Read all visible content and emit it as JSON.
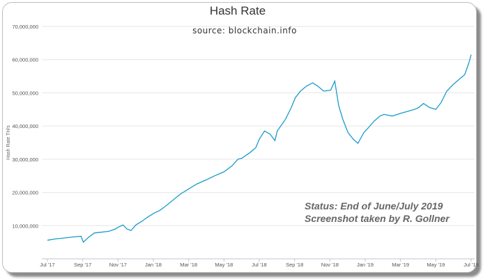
{
  "annotation": {
    "line1": "Status: End of June/July 2019",
    "line2": "Screenshot taken by R. Gollner"
  },
  "chart_data": {
    "type": "line",
    "title": "Hash Rate",
    "subtitle": "source: blockchain.info",
    "xlabel": "",
    "ylabel": "Hash Rate TH/s",
    "ylim": [
      0,
      70000000
    ],
    "y_ticks": [
      "10,000,000",
      "20,000,000",
      "30,000,000",
      "40,000,000",
      "50,000,000",
      "60,000,000",
      "70,000,000"
    ],
    "x_ticks": [
      "Jul '17",
      "Sep '17",
      "Nov '17",
      "Jan '18",
      "Mar '18",
      "May '18",
      "Jul '18",
      "Sep '18",
      "Nov '18",
      "Jan '19",
      "Mar '19",
      "May '19",
      "Jul '19"
    ],
    "grid": true,
    "line_color": "#1a9bc9",
    "series": [
      {
        "x": [
          "2017-07-01",
          "2017-07-15",
          "2017-08-01",
          "2017-08-15",
          "2017-08-28",
          "2017-09-01",
          "2017-09-10",
          "2017-09-20",
          "2017-10-01",
          "2017-10-15",
          "2017-10-25",
          "2017-11-01",
          "2017-11-08",
          "2017-11-15",
          "2017-11-22",
          "2017-12-01",
          "2017-12-10",
          "2017-12-20",
          "2018-01-01",
          "2018-01-10",
          "2018-01-20",
          "2018-02-01",
          "2018-02-15",
          "2018-03-01",
          "2018-03-15",
          "2018-04-01",
          "2018-04-15",
          "2018-05-01",
          "2018-05-15",
          "2018-05-25",
          "2018-06-01",
          "2018-06-15",
          "2018-06-25",
          "2018-07-01",
          "2018-07-10",
          "2018-07-20",
          "2018-07-28",
          "2018-08-01",
          "2018-08-15",
          "2018-08-25",
          "2018-09-01",
          "2018-09-10",
          "2018-09-20",
          "2018-10-01",
          "2018-10-10",
          "2018-10-20",
          "2018-11-01",
          "2018-11-08",
          "2018-11-15",
          "2018-11-22",
          "2018-12-01",
          "2018-12-10",
          "2018-12-18",
          "2018-12-28",
          "2019-01-05",
          "2019-01-15",
          "2019-01-25",
          "2019-02-01",
          "2019-02-15",
          "2019-03-01",
          "2019-03-15",
          "2019-03-25",
          "2019-04-01",
          "2019-04-10",
          "2019-04-20",
          "2019-05-01",
          "2019-05-10",
          "2019-05-20",
          "2019-05-31",
          "2019-06-10",
          "2019-06-20",
          "2019-06-27",
          "2019-07-01"
        ],
        "y": [
          5600000,
          6000000,
          6300000,
          6600000,
          6800000,
          5000000,
          6500000,
          7800000,
          8000000,
          8300000,
          8900000,
          9600000,
          10200000,
          9000000,
          8500000,
          10300000,
          11200000,
          12500000,
          13800000,
          14500000,
          15800000,
          17500000,
          19500000,
          21000000,
          22500000,
          23800000,
          25000000,
          26200000,
          28000000,
          30000000,
          30300000,
          32000000,
          33500000,
          36000000,
          38500000,
          37500000,
          35600000,
          38500000,
          42000000,
          45500000,
          48500000,
          50500000,
          52000000,
          53000000,
          52000000,
          50500000,
          50800000,
          53500000,
          46000000,
          42000000,
          38000000,
          36000000,
          34800000,
          38000000,
          39500000,
          41500000,
          43000000,
          43500000,
          43000000,
          43800000,
          44500000,
          45000000,
          45500000,
          46800000,
          45600000,
          45000000,
          47000000,
          50500000,
          52500000,
          54000000,
          55500000,
          59000000,
          61500000
        ]
      }
    ]
  }
}
